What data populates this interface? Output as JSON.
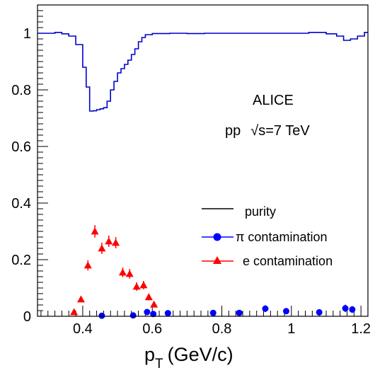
{
  "chart_data": {
    "type": "line",
    "xlabel": "p",
    "xlabel_sub": "T",
    "xlabel_units": "(GeV/c)",
    "xlim": [
      0.27,
      1.22
    ],
    "ylim": [
      0,
      1.1
    ],
    "xticks": [
      0.4,
      0.6,
      0.8,
      1,
      1.2
    ],
    "xtick_labels": [
      "0.4",
      "0.6",
      "0.8",
      "1",
      "1.2"
    ],
    "yticks": [
      0,
      0.2,
      0.4,
      0.6,
      0.8,
      1
    ],
    "ytick_labels": [
      "0",
      "0.2",
      "0.4",
      "0.6",
      "0.8",
      "1"
    ],
    "grid": false,
    "annotations": {
      "line1": "ALICE",
      "line2_prefix": "pp",
      "line2_sqrt": "√s",
      "line2_rest": "=7 TeV"
    },
    "legend": {
      "placement": "center-right",
      "entries": [
        "purity",
        "π contamination",
        "e contamination"
      ]
    },
    "colors": {
      "purity": "#0000cc",
      "pi": "#0000ff",
      "e": "#ff0000"
    },
    "series": [
      {
        "name": "purity",
        "style": "step",
        "edges": [
          0.27,
          0.3,
          0.32,
          0.34,
          0.36,
          0.38,
          0.4,
          0.41,
          0.42,
          0.43,
          0.44,
          0.45,
          0.46,
          0.47,
          0.48,
          0.49,
          0.5,
          0.51,
          0.52,
          0.53,
          0.54,
          0.55,
          0.56,
          0.57,
          0.58,
          0.6,
          0.65,
          0.7,
          0.75,
          0.8,
          0.9,
          1.0,
          1.05,
          1.1,
          1.13,
          1.15,
          1.17,
          1.19,
          1.21,
          1.22
        ],
        "values": [
          1.0,
          1.0,
          1.003,
          0.998,
          0.99,
          0.96,
          0.88,
          0.81,
          0.725,
          0.726,
          0.73,
          0.733,
          0.737,
          0.76,
          0.8,
          0.83,
          0.86,
          0.875,
          0.89,
          0.905,
          0.925,
          0.945,
          0.97,
          0.985,
          0.995,
          0.999,
          1.0,
          0.999,
          1.0,
          1.0,
          1.0,
          1.0,
          1.003,
          0.998,
          0.99,
          0.975,
          0.98,
          0.99,
          1.003
        ]
      },
      {
        "name": "π contamination",
        "style": "markers",
        "marker": "circle",
        "points": [
          {
            "x": 0.455,
            "y": 0.002,
            "err": 0.002
          },
          {
            "x": 0.545,
            "y": 0.003,
            "err": 0.003
          },
          {
            "x": 0.585,
            "y": 0.015,
            "err": 0.004
          },
          {
            "x": 0.603,
            "y": 0.008,
            "err": 0.003
          },
          {
            "x": 0.645,
            "y": 0.011,
            "err": 0.004
          },
          {
            "x": 0.775,
            "y": 0.012,
            "err": 0.005
          },
          {
            "x": 0.85,
            "y": 0.012,
            "err": 0.006
          },
          {
            "x": 0.925,
            "y": 0.027,
            "err": 0.012
          },
          {
            "x": 0.985,
            "y": 0.018,
            "err": 0.01
          },
          {
            "x": 1.08,
            "y": 0.014,
            "err": 0.006
          },
          {
            "x": 1.155,
            "y": 0.028,
            "err": 0.013
          },
          {
            "x": 1.175,
            "y": 0.024,
            "err": 0.012
          }
        ]
      },
      {
        "name": "e contamination",
        "style": "markers",
        "marker": "triangle",
        "points": [
          {
            "x": 0.375,
            "y": 0.015,
            "err": 0.004
          },
          {
            "x": 0.395,
            "y": 0.06,
            "err": 0.01
          },
          {
            "x": 0.415,
            "y": 0.18,
            "err": 0.018
          },
          {
            "x": 0.435,
            "y": 0.3,
            "err": 0.022
          },
          {
            "x": 0.455,
            "y": 0.24,
            "err": 0.02
          },
          {
            "x": 0.475,
            "y": 0.265,
            "err": 0.02
          },
          {
            "x": 0.495,
            "y": 0.26,
            "err": 0.02
          },
          {
            "x": 0.515,
            "y": 0.155,
            "err": 0.017
          },
          {
            "x": 0.535,
            "y": 0.15,
            "err": 0.017
          },
          {
            "x": 0.555,
            "y": 0.105,
            "err": 0.015
          },
          {
            "x": 0.575,
            "y": 0.11,
            "err": 0.015
          },
          {
            "x": 0.59,
            "y": 0.068,
            "err": 0.012
          },
          {
            "x": 0.605,
            "y": 0.042,
            "err": 0.01
          }
        ]
      }
    ]
  }
}
